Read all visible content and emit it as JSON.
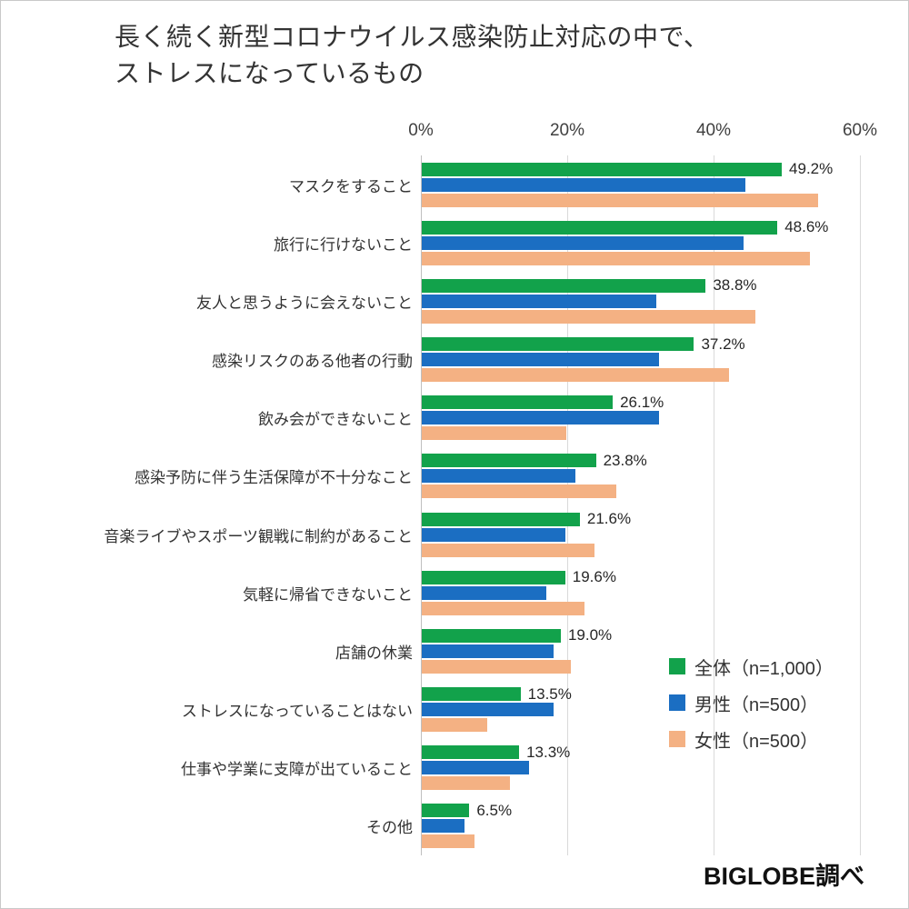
{
  "title": {
    "line1": "長く続く新型コロナウイルス感染防止対応の中で、",
    "line2": "ストレスになっているもの"
  },
  "source": "BIGLOBE調べ",
  "colors": {
    "overall": "#12a24b",
    "male": "#1b6ec2",
    "female": "#f4b183",
    "grid": "#d9d9d9",
    "axis": "#bfbfbf",
    "text": "#333333"
  },
  "chart_data": {
    "type": "bar",
    "orientation": "horizontal",
    "title": "長く続く新型コロナウイルス感染防止対応の中で、ストレスになっているもの",
    "xlim": [
      0,
      60
    ],
    "x_ticks": [
      {
        "value": 0,
        "label": "0%"
      },
      {
        "value": 20,
        "label": "20%"
      },
      {
        "value": 40,
        "label": "40%"
      },
      {
        "value": 60,
        "label": "60%"
      }
    ],
    "grid": true,
    "legend_position": "lower-right",
    "categories": [
      "マスクをすること",
      "旅行に行けないこと",
      "友人と思うように会えないこと",
      "感染リスクのある他者の行動",
      "飲み会ができないこと",
      "感染予防に伴う生活保障が不十分なこと",
      "音楽ライブやスポーツ観戦に制約があること",
      "気軽に帰省できないこと",
      "店舗の休業",
      "ストレスになっていることはない",
      "仕事や学業に支障が出ていること",
      "その他"
    ],
    "series": [
      {
        "name": "全体（n=1,000）",
        "color_key": "overall",
        "values": [
          49.2,
          48.6,
          38.8,
          37.2,
          26.1,
          23.8,
          21.6,
          19.6,
          19.0,
          13.5,
          13.3,
          6.5
        ],
        "labels_shown": true
      },
      {
        "name": "男性（n=500）",
        "color_key": "male",
        "values": [
          44.2,
          44.0,
          32.0,
          32.4,
          32.4,
          21.0,
          19.6,
          17.0,
          18.0,
          18.0,
          14.6,
          5.8
        ],
        "labels_shown": false
      },
      {
        "name": "女性（n=500）",
        "color_key": "female",
        "values": [
          54.2,
          53.0,
          45.6,
          42.0,
          19.8,
          26.6,
          23.6,
          22.2,
          20.4,
          9.0,
          12.0,
          7.2
        ],
        "labels_shown": false
      }
    ],
    "value_labels": [
      "49.2%",
      "48.6%",
      "38.8%",
      "37.2%",
      "26.1%",
      "23.8%",
      "21.6%",
      "19.6%",
      "19.0%",
      "13.5%",
      "13.3%",
      "6.5%"
    ]
  },
  "legend": {
    "items": [
      {
        "label": "全体（n=1,000）",
        "color_key": "overall"
      },
      {
        "label": "男性（n=500）",
        "color_key": "male"
      },
      {
        "label": "女性（n=500）",
        "color_key": "female"
      }
    ]
  }
}
